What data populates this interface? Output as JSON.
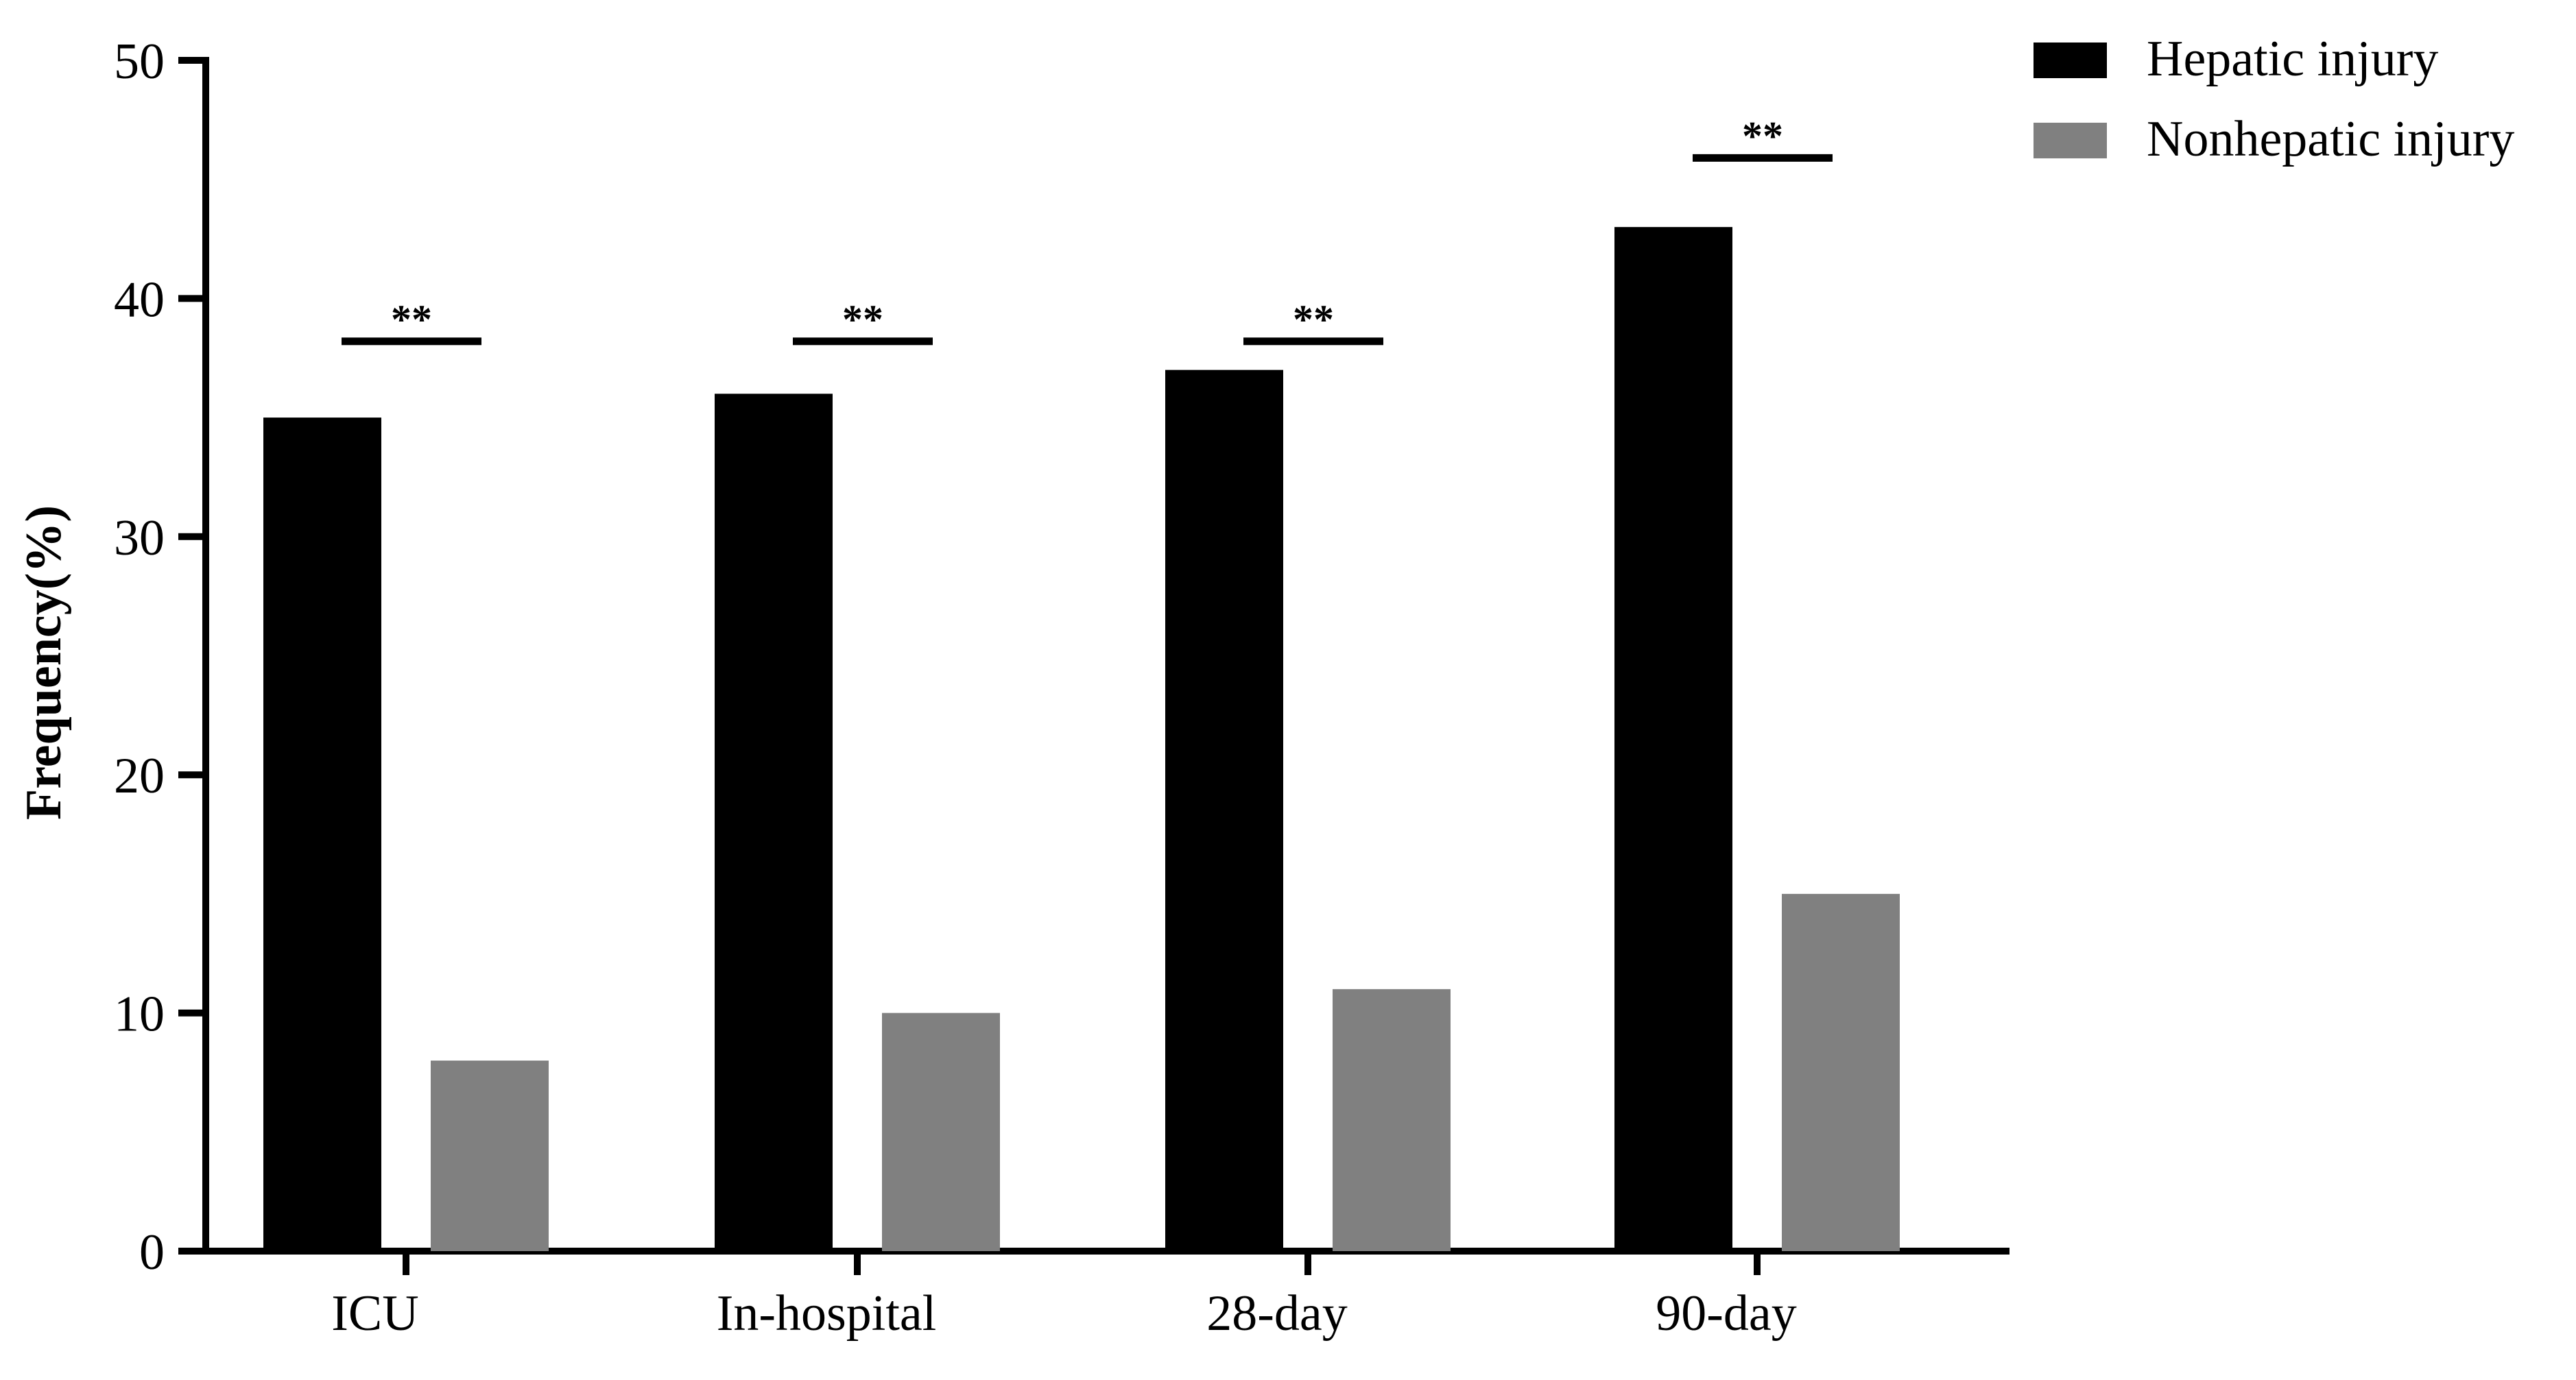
{
  "chart_data": {
    "type": "bar",
    "title": "",
    "xlabel": "",
    "ylabel": "Frequency(%)",
    "ylim": [
      0,
      50
    ],
    "yticks": [
      0,
      10,
      20,
      30,
      40,
      50
    ],
    "grid": false,
    "legend_position": "top-right",
    "categories": [
      "ICU",
      "In-hospital",
      "28-day",
      "90-day"
    ],
    "series": [
      {
        "name": "Hepatic injury",
        "color": "#000000",
        "values": [
          35,
          36,
          37,
          43
        ]
      },
      {
        "name": "Nonhepatic injury",
        "color": "#808080",
        "values": [
          8,
          10,
          11,
          15
        ]
      }
    ],
    "annotations": [
      {
        "category": "ICU",
        "text": "**",
        "y": 38.2
      },
      {
        "category": "In-hospital",
        "text": "**",
        "y": 38.2
      },
      {
        "category": "28-day",
        "text": "**",
        "y": 38.2
      },
      {
        "category": "90-day",
        "text": "**",
        "y": 45.9
      }
    ]
  }
}
